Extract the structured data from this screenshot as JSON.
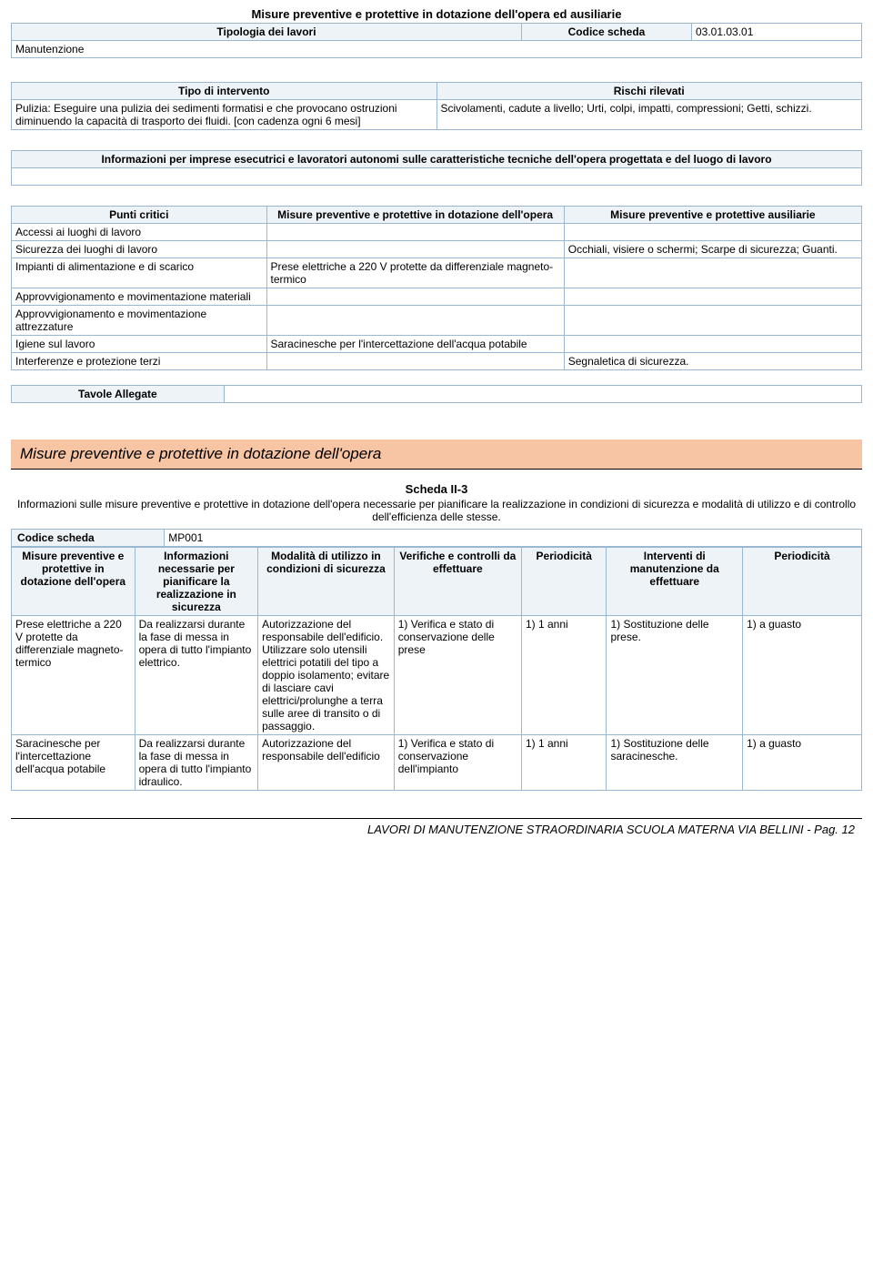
{
  "top_title": "Misure preventive e protettive in dotazione dell'opera ed ausiliarie",
  "tipologia_label": "Tipologia dei lavori",
  "codice_scheda_label": "Codice scheda",
  "codice_scheda_value": "03.01.03.01",
  "manutenzione": "Manutenzione",
  "tipo_intervento_hdr": "Tipo di intervento",
  "rischi_hdr": "Rischi rilevati",
  "tipo_intervento_text": "Pulizia: Eseguire una pulizia dei sedimenti formatisi e che provocano ostruzioni diminuendo la capacità di trasporto dei fluidi. [con cadenza ogni 6 mesi]",
  "rischi_text": "Scivolamenti, cadute a livello; Urti, colpi, impatti, compressioni; Getti, schizzi.",
  "info_box": "Informazioni per imprese esecutrici e lavoratori autonomi sulle caratteristiche tecniche dell'opera progettata e del luogo di lavoro",
  "punti_hdr1": "Punti critici",
  "punti_hdr2": "Misure preventive e protettive in dotazione dell'opera",
  "punti_hdr3": "Misure preventive e protettive ausiliarie",
  "punti_rows": [
    {
      "c1": "Accessi ai luoghi di lavoro",
      "c2": "",
      "c3": ""
    },
    {
      "c1": "Sicurezza dei luoghi di lavoro",
      "c2": "",
      "c3": "Occhiali, visiere o schermi; Scarpe di sicurezza; Guanti."
    },
    {
      "c1": "Impianti di alimentazione e di scarico",
      "c2": "Prese elettriche a 220 V protette da differenziale magneto-termico",
      "c3": ""
    },
    {
      "c1": "Approvvigionamento e movimentazione materiali",
      "c2": "",
      "c3": ""
    },
    {
      "c1": "Approvvigionamento e movimentazione attrezzature",
      "c2": "",
      "c3": ""
    },
    {
      "c1": "Igiene sul lavoro",
      "c2": "Saracinesche per l'intercettazione dell'acqua potabile",
      "c3": ""
    },
    {
      "c1": "Interferenze e protezione terzi",
      "c2": "",
      "c3": "Segnaletica di sicurezza."
    }
  ],
  "tavole_label": "Tavole Allegate",
  "banner": "Misure preventive e protettive in dotazione dell'opera",
  "scheda2_title": "Scheda II-3",
  "scheda2_desc": "Informazioni sulle misure preventive e protettive in dotazione dell'opera necessarie per pianificare la realizzazione in condizioni di sicurezza e modalità di utilizzo e di controllo dell'efficienza delle stesse.",
  "codice_scheda2_label": "Codice scheda",
  "codice_scheda2_value": "MP001",
  "big_hdr": {
    "c1": "Misure preventive e protettive in dotazione dell'opera",
    "c2": "Informazioni necessarie per pianificare la realizzazione in sicurezza",
    "c3": "Modalità di utilizzo in condizioni di sicurezza",
    "c4": "Verifiche e controlli da effettuare",
    "c5": "Periodicità",
    "c6": "Interventi di manutenzione da effettuare",
    "c7": "Periodicità"
  },
  "big_rows": [
    {
      "c1": "Prese elettriche a 220 V protette da differenziale magneto-termico",
      "c2": "Da realizzarsi durante la fase di messa in opera di tutto l'impianto elettrico.",
      "c3": "Autorizzazione del responsabile dell'edificio. Utilizzare solo utensili elettrici potatili del tipo a doppio isolamento; evitare di lasciare cavi elettrici/prolunghe a terra sulle aree di transito o di passaggio.",
      "c4": "1) Verifica e stato di conservazione delle prese",
      "c5": "1) 1 anni",
      "c6": "1) Sostituzione delle prese.",
      "c7": "1) a guasto"
    },
    {
      "c1": "Saracinesche per l'intercettazione dell'acqua potabile",
      "c2": "Da realizzarsi durante la fase di messa in opera di tutto l'impianto idraulico.",
      "c3": "Autorizzazione del responsabile dell'edificio",
      "c4": "1) Verifica e stato di conservazione dell'impianto",
      "c5": "1) 1 anni",
      "c6": "1) Sostituzione delle saracinesche.",
      "c7": "1) a guasto"
    }
  ],
  "footer": "LAVORI DI MANUTENZIONE STRAORDINARIA SCUOLA MATERNA VIA BELLINI - Pag. 12",
  "colors": {
    "border": "#9bb8d3",
    "banner_bg": "#f7c4a4",
    "header_bg": "#eef3f7"
  },
  "col_widths_big": [
    "14.5%",
    "14.5%",
    "16%",
    "15%",
    "10%",
    "16%",
    "14%"
  ]
}
